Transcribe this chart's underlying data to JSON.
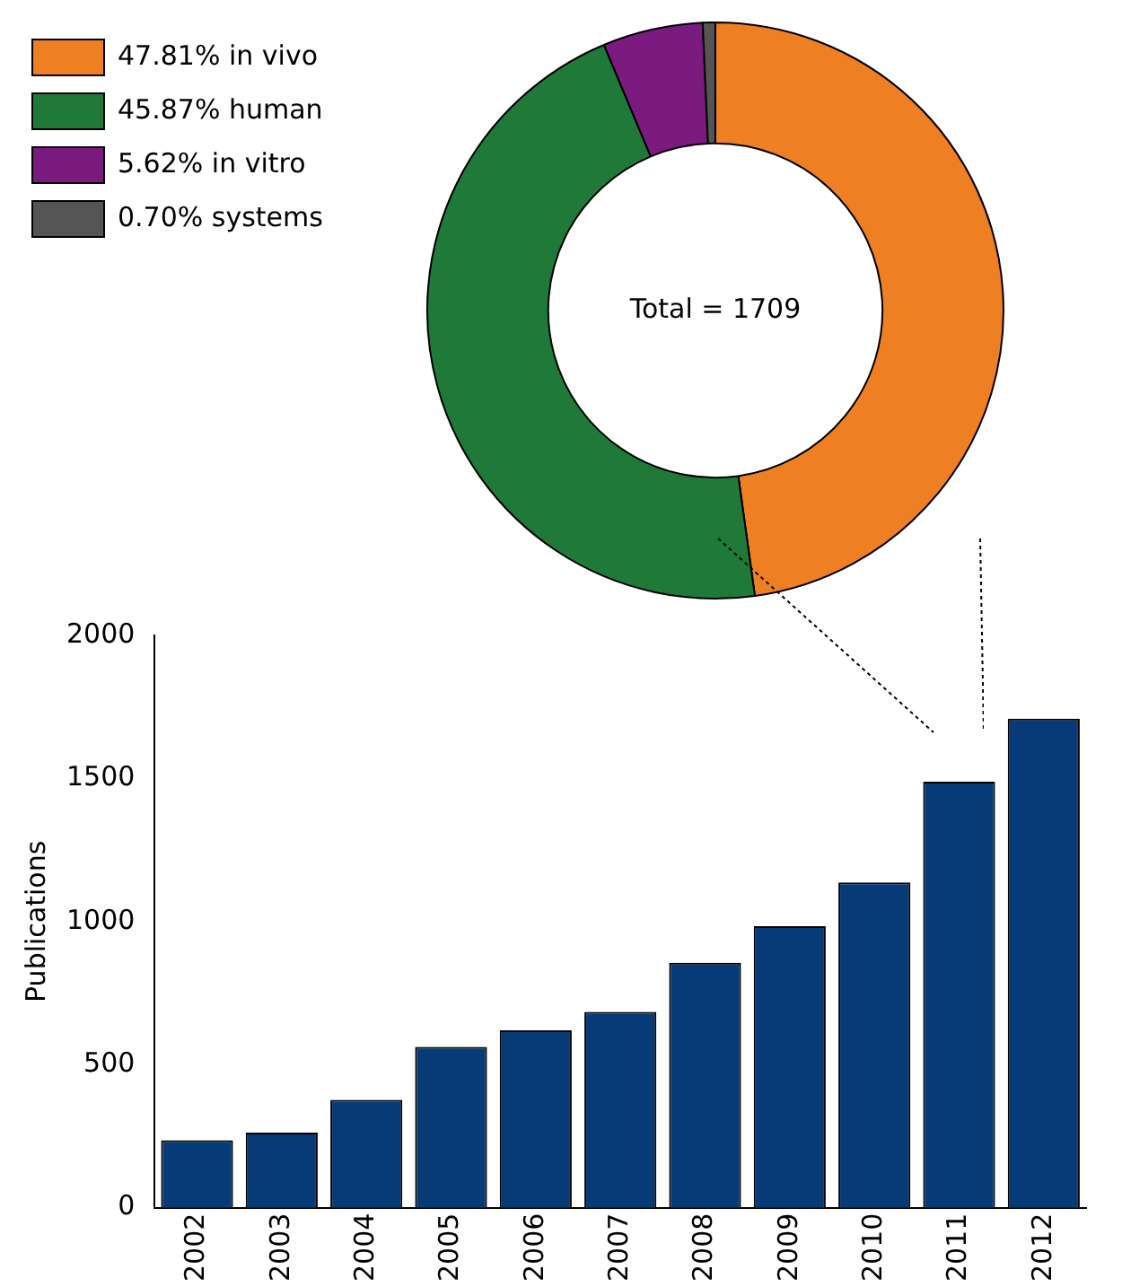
{
  "chart_data": [
    {
      "type": "donut",
      "categories": [
        "47.81% in vivo",
        "45.87% human",
        "5.62% in vitro",
        "0.70% systems"
      ],
      "values": [
        47.81,
        45.87,
        5.62,
        0.7
      ],
      "colors": [
        "#ee7f22",
        "#1f7a3a",
        "#7b1a7f",
        "#555555"
      ],
      "legend": "top left",
      "annotations": [
        "Total = 1709"
      ]
    },
    {
      "type": "bar",
      "categories": [
        "2002",
        "2003",
        "2004",
        "2005",
        "2006",
        "2007",
        "2008",
        "2009",
        "2010",
        "2011",
        "2012"
      ],
      "values": [
        236,
        262,
        377,
        562,
        620,
        684,
        856,
        984,
        1137,
        1489,
        1709
      ],
      "color": "#073b78",
      "ylabel": "Publications",
      "ylim": [
        0,
        2000
      ],
      "yticks": [
        0,
        500,
        1000,
        1500,
        2000
      ],
      "grid": false,
      "legend": false
    }
  ]
}
